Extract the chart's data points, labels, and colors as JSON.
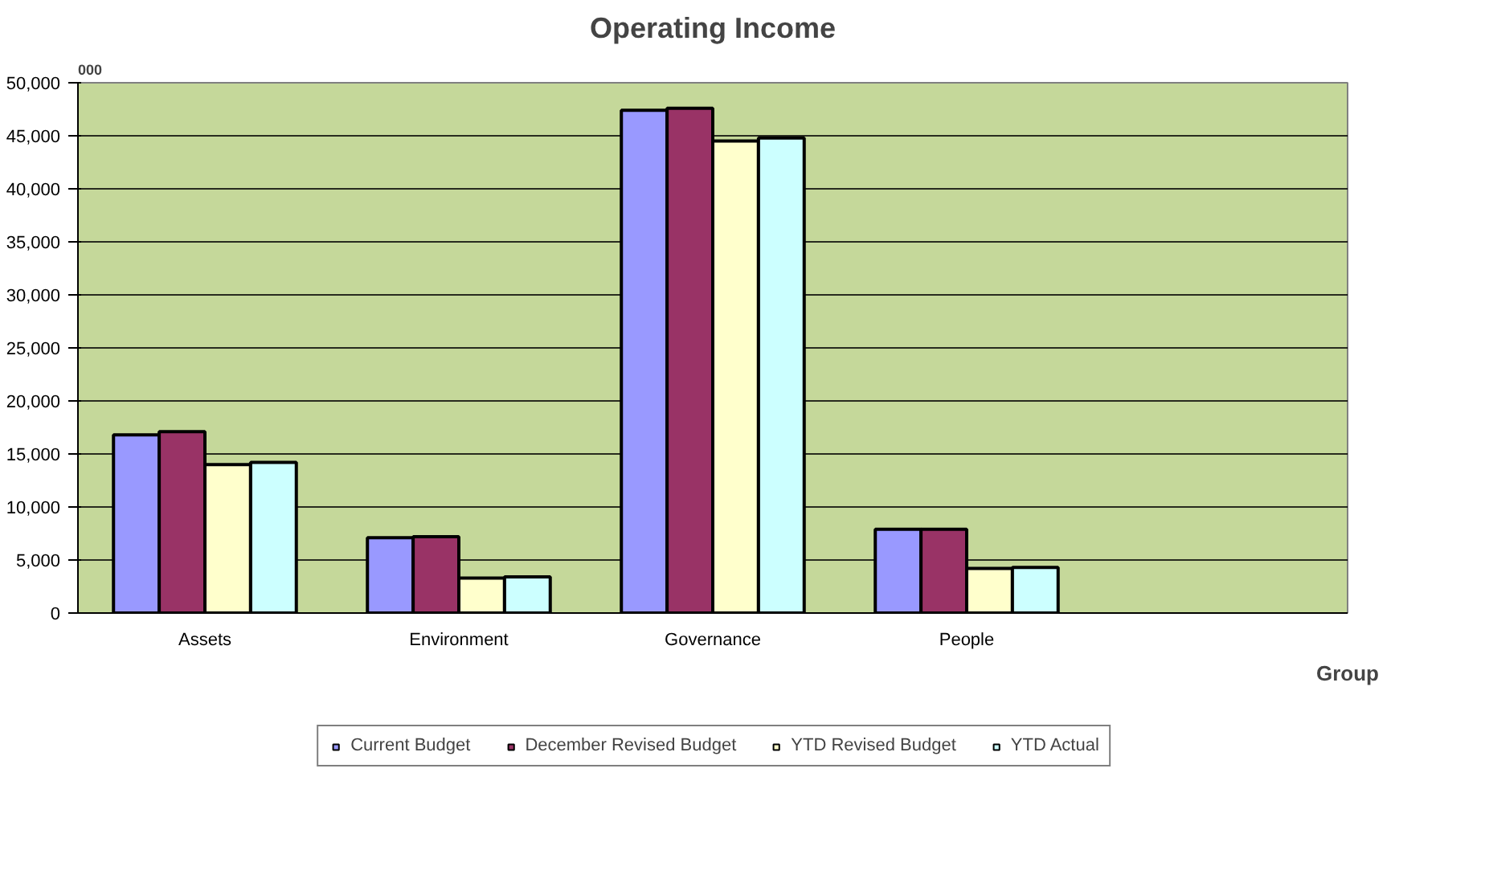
{
  "chart_data": {
    "type": "bar",
    "title": "Operating Income",
    "ylabel": "000",
    "xlabel": "Group",
    "categories": [
      "Assets",
      "Environment",
      "Governance",
      "People",
      null
    ],
    "series": [
      {
        "name": "Current Budget",
        "color": "#9999ff",
        "values": [
          16800,
          7100,
          47400,
          7900,
          null
        ]
      },
      {
        "name": "December Revised Budget",
        "color": "#993366",
        "values": [
          17100,
          7200,
          47600,
          7900,
          null
        ]
      },
      {
        "name": "YTD Revised Budget",
        "color": "#ffffcc",
        "values": [
          14000,
          3300,
          44500,
          4200,
          null
        ]
      },
      {
        "name": "YTD Actual",
        "color": "#ccffff",
        "values": [
          14200,
          3400,
          44800,
          4300,
          null
        ]
      }
    ],
    "ylim": [
      0,
      50000
    ],
    "yticks": [
      {
        "value": 0,
        "label": "0"
      },
      {
        "value": 5000,
        "label": "5,000"
      },
      {
        "value": 10000,
        "label": "10,000"
      },
      {
        "value": 15000,
        "label": "15,000"
      },
      {
        "value": 20000,
        "label": "20,000"
      },
      {
        "value": 25000,
        "label": "25,000"
      },
      {
        "value": 30000,
        "label": "30,000"
      },
      {
        "value": 35000,
        "label": "35,000"
      },
      {
        "value": 40000,
        "label": "40,000"
      },
      {
        "value": 45000,
        "label": "45,000"
      },
      {
        "value": 50000,
        "label": "50,000"
      }
    ],
    "grid": "y",
    "legend": "bottom"
  }
}
